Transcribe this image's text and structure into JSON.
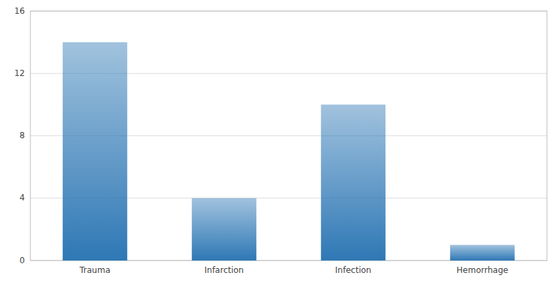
{
  "chart_data": {
    "type": "bar",
    "categories": [
      "Trauma",
      "Infarction",
      "Infection",
      "Hemorrhage"
    ],
    "values": [
      14,
      4,
      10,
      1
    ],
    "color": "#2e78b5",
    "ylim": [
      0,
      16
    ],
    "yticks": [
      0,
      4,
      8,
      12,
      16
    ],
    "grid": true
  }
}
